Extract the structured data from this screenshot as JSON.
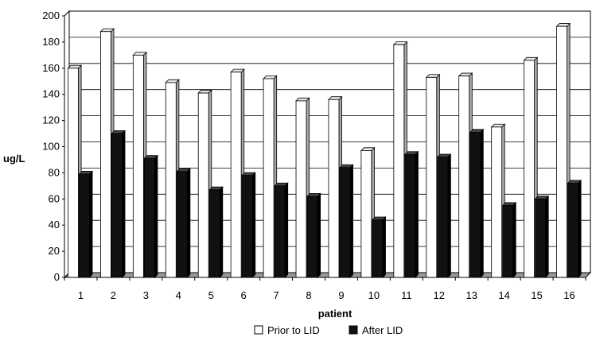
{
  "chart_data": {
    "type": "bar",
    "title": "",
    "xlabel": "patient",
    "ylabel": "ug/L",
    "ylim": [
      0,
      200
    ],
    "yticks": [
      0,
      20,
      40,
      60,
      80,
      100,
      120,
      140,
      160,
      180,
      200
    ],
    "grid": true,
    "legend_position": "bottom",
    "categories": [
      "1",
      "2",
      "3",
      "4",
      "5",
      "6",
      "7",
      "8",
      "9",
      "10",
      "11",
      "12",
      "13",
      "14",
      "15",
      "16"
    ],
    "series": [
      {
        "name": "Prior to LID",
        "color": "#ffffff",
        "values": [
          160,
          188,
          170,
          149,
          141,
          157,
          152,
          135,
          136,
          97,
          178,
          153,
          154,
          115,
          166,
          192
        ]
      },
      {
        "name": "After LID",
        "color": "#111111",
        "values": [
          79,
          110,
          91,
          81,
          67,
          78,
          70,
          62,
          84,
          44,
          94,
          92,
          111,
          55,
          60,
          72
        ]
      }
    ]
  }
}
